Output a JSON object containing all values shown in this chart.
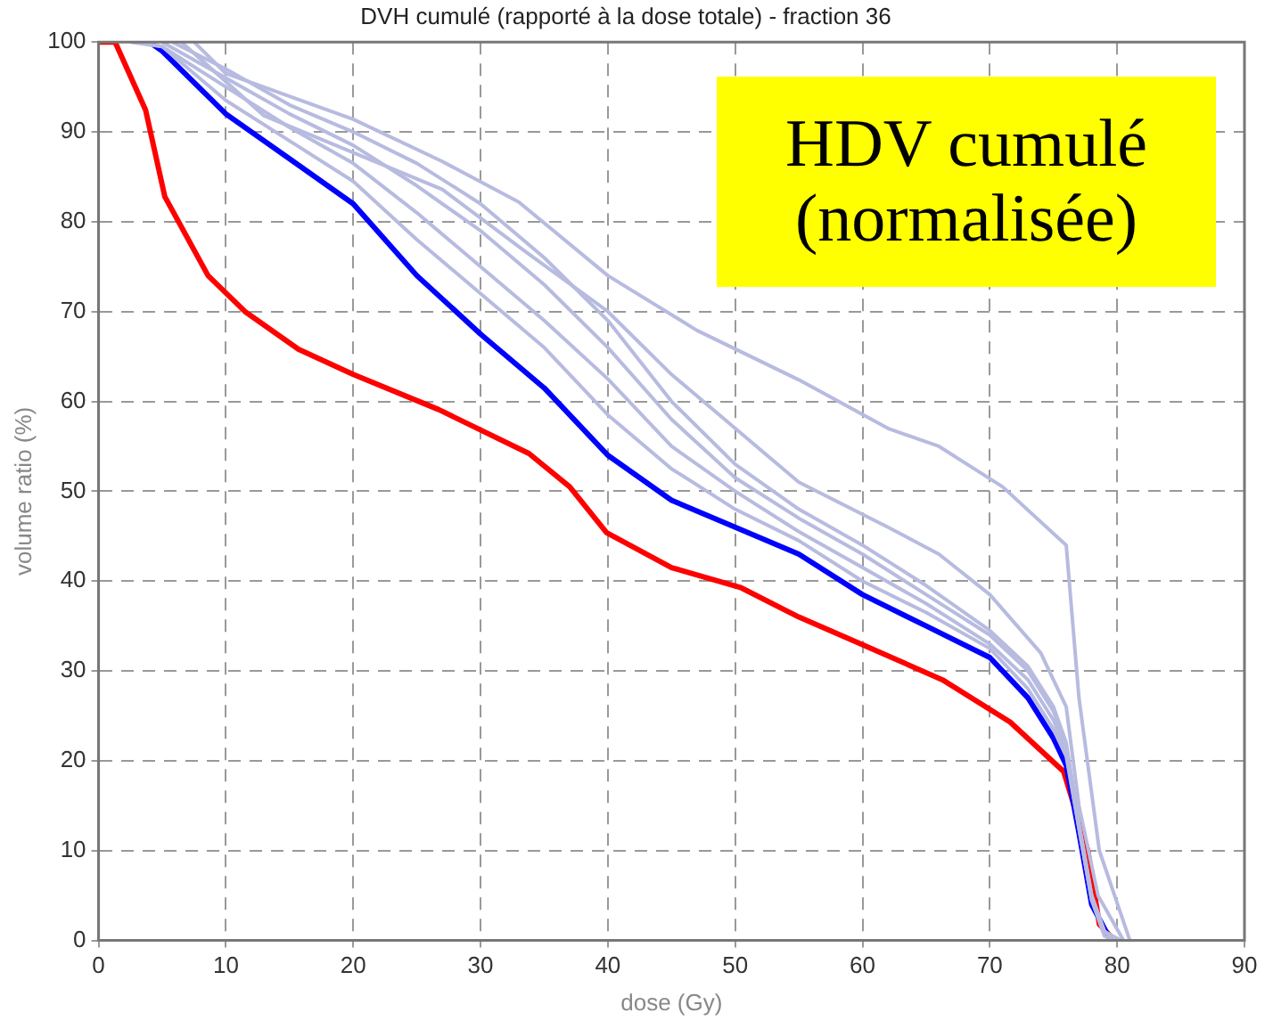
{
  "chart_data": {
    "type": "line",
    "title": "DVH cumulé (rapporté à la dose totale) - fraction 36",
    "xlabel": "dose (Gy)",
    "ylabel": "volume ratio (%)",
    "annotations": [
      "HDV cumulé\n(normalisée)"
    ],
    "xlim": [
      0,
      90
    ],
    "xticks": [
      0,
      10,
      20,
      30,
      40,
      50,
      60,
      70,
      80,
      90
    ],
    "ylim": [
      0,
      100
    ],
    "yticks": [
      0,
      10,
      20,
      30,
      40,
      50,
      60,
      70,
      80,
      90,
      100
    ],
    "grid": true,
    "legend": false,
    "marker": "none",
    "line_style": "solid",
    "series": [
      {
        "color": "#b8bbe0",
        "x": [
          7.5,
          10,
          20,
          27,
          33,
          40,
          47,
          55,
          62,
          66,
          71,
          76,
          77,
          78.6,
          81
        ],
        "values": [
          100,
          96.5,
          91.4,
          86.7,
          82.2,
          74,
          67.9,
          62.4,
          57,
          55,
          50.5,
          44,
          27,
          10,
          0
        ]
      },
      {
        "color": "#b8bbe0",
        "x": [
          6.5,
          13,
          27,
          33.5,
          40,
          45,
          50,
          55,
          62,
          66,
          70,
          74,
          76,
          77,
          78.5,
          80.5
        ],
        "values": [
          100,
          91.8,
          83.6,
          76.7,
          70,
          63,
          57,
          51,
          46,
          43,
          38.5,
          32,
          26,
          15,
          5,
          0
        ]
      },
      {
        "color": "#b8bbe0",
        "x": [
          5.8,
          10,
          15,
          20,
          25,
          30,
          35,
          40,
          45,
          50,
          55,
          60,
          65,
          70,
          73,
          75,
          76,
          77,
          78,
          79,
          80.3
        ],
        "values": [
          100,
          97,
          93,
          90,
          86.5,
          82,
          76,
          69,
          60,
          53,
          48,
          44,
          39.5,
          34.5,
          30.5,
          26,
          22,
          13,
          5,
          1,
          0
        ]
      },
      {
        "color": "#b8bbe0",
        "x": [
          5,
          10,
          15,
          20,
          25,
          30,
          35,
          40,
          45,
          50,
          55,
          60,
          65,
          70,
          73,
          75,
          76,
          77,
          78,
          79,
          80.1
        ],
        "values": [
          100,
          96,
          92,
          88.5,
          84,
          79,
          73,
          66,
          58,
          51.5,
          47,
          43,
          38.5,
          34,
          30,
          25.5,
          21.5,
          13,
          5,
          1,
          0
        ]
      },
      {
        "color": "#b8bbe0",
        "x": [
          3.2,
          5,
          10,
          15,
          20,
          25,
          30,
          35,
          40,
          45,
          50,
          55,
          60,
          65,
          70,
          73,
          75,
          76,
          77,
          78,
          79,
          79.9
        ],
        "values": [
          100,
          99.5,
          95,
          90.5,
          86.5,
          81,
          75,
          69,
          62.5,
          55,
          50,
          45.5,
          41.5,
          37.5,
          33,
          29,
          24.5,
          21,
          12.5,
          4.5,
          1,
          0
        ]
      },
      {
        "color": "#b8bbe0",
        "x": [
          2.5,
          5,
          10,
          15,
          20,
          25,
          30,
          35,
          40,
          45,
          50,
          55,
          60,
          65,
          70,
          73,
          75,
          76,
          77,
          78,
          79,
          79.7
        ],
        "values": [
          100,
          99.5,
          93.5,
          89,
          84.5,
          78,
          72,
          66,
          58.5,
          52.5,
          48,
          44.5,
          40,
          36.5,
          32.5,
          28,
          23.5,
          20.5,
          12.5,
          4.5,
          0.5,
          0
        ]
      },
      {
        "color": "#0000ff",
        "x": [
          4,
          5,
          10,
          15,
          20,
          25,
          30,
          35,
          40,
          45,
          50,
          55,
          60,
          65,
          70,
          73,
          75,
          76,
          77,
          78,
          79.5
        ],
        "values": [
          100,
          99,
          92,
          87,
          82,
          74,
          67.5,
          61.5,
          54,
          49,
          46,
          43,
          38.5,
          35,
          31.5,
          27,
          22.5,
          19.5,
          12,
          4,
          0
        ]
      },
      {
        "color": "#ff0000",
        "x": [
          0,
          1.3,
          3.7,
          5.2,
          8.6,
          11.5,
          15.7,
          20,
          26.7,
          33.8,
          37,
          39.9,
          45,
          50.4,
          55,
          59.7,
          66.3,
          71.6,
          75.8,
          77.7,
          78.6,
          79.8
        ],
        "values": [
          100,
          100,
          92.4,
          82.8,
          74,
          70,
          65.8,
          63,
          59.1,
          54.2,
          50.5,
          45.4,
          41.5,
          39.3,
          36,
          33.1,
          29,
          24.3,
          18.8,
          10,
          1.8,
          0
        ]
      }
    ]
  }
}
